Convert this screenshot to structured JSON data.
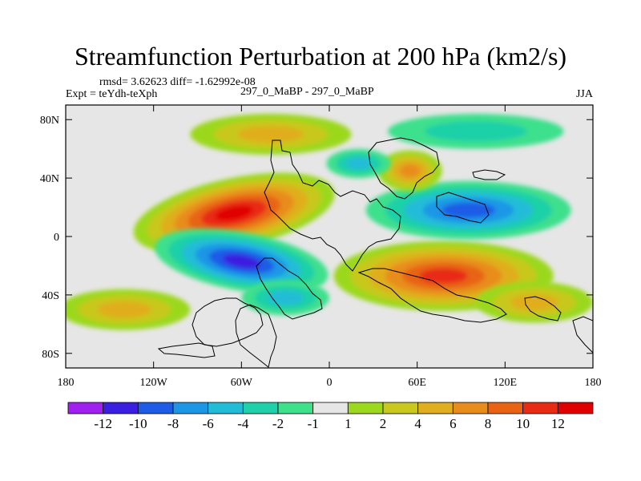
{
  "title": "Streamfunction Perturbation at 200 hPa (km2/s)",
  "stats_line": "rmsd= 3.62623 diff= -1.62992e-08",
  "experiment": "Expt = teYdh-teXph",
  "center_label": "297_0_MaBP - 297_0_MaBP",
  "season": "JJA",
  "chart_data": {
    "type": "heatmap",
    "title": "Streamfunction Perturbation at 200 hPa (km2/s)",
    "x_ticks": [
      {
        "value": -180,
        "label": "180"
      },
      {
        "value": -120,
        "label": "120W"
      },
      {
        "value": -60,
        "label": "60W"
      },
      {
        "value": 0,
        "label": "0"
      },
      {
        "value": 60,
        "label": "60E"
      },
      {
        "value": 120,
        "label": "120E"
      },
      {
        "value": 180,
        "label": "180"
      }
    ],
    "y_ticks": [
      {
        "value": 80,
        "label": "80N"
      },
      {
        "value": 40,
        "label": "40N"
      },
      {
        "value": 0,
        "label": "0"
      },
      {
        "value": -40,
        "label": "40S"
      },
      {
        "value": -80,
        "label": "80S"
      }
    ],
    "xlim": [
      -180,
      180
    ],
    "ylim": [
      -90,
      90
    ],
    "colorbar": {
      "labels": [
        "-12",
        "-10",
        "-8",
        "-6",
        "-4",
        "-2",
        "-1",
        "1",
        "2",
        "4",
        "6",
        "8",
        "10",
        "12"
      ],
      "colors": [
        "#a020f0",
        "#3a1fe0",
        "#1e5ce6",
        "#1e96e6",
        "#23bcd8",
        "#1fd0a8",
        "#3ee08c",
        "#e6e6e6",
        "#9bd81e",
        "#c8c81e",
        "#e0ae1e",
        "#e88c1e",
        "#e86414",
        "#e82c14",
        "#e00000"
      ]
    },
    "features": [
      {
        "name": "high",
        "lon": -65,
        "lat": 16,
        "value": 12
      },
      {
        "name": "low",
        "lon": -60,
        "lat": -17,
        "value": -11
      },
      {
        "name": "high",
        "lon": 78,
        "lat": -27,
        "value": 10
      },
      {
        "name": "low",
        "lon": 95,
        "lat": 18,
        "value": -9
      },
      {
        "name": "high",
        "lon": -40,
        "lat": 70,
        "value": 5
      },
      {
        "name": "high",
        "lon": 55,
        "lat": 45,
        "value": 6
      },
      {
        "name": "high",
        "lon": -140,
        "lat": -50,
        "value": 5
      },
      {
        "name": "high",
        "lon": 140,
        "lat": -45,
        "value": 5
      },
      {
        "name": "low",
        "lon": -30,
        "lat": -42,
        "value": -4
      },
      {
        "name": "low",
        "lon": 20,
        "lat": 50,
        "value": -4
      },
      {
        "name": "low",
        "lon": 100,
        "lat": 72,
        "value": -3
      }
    ]
  }
}
